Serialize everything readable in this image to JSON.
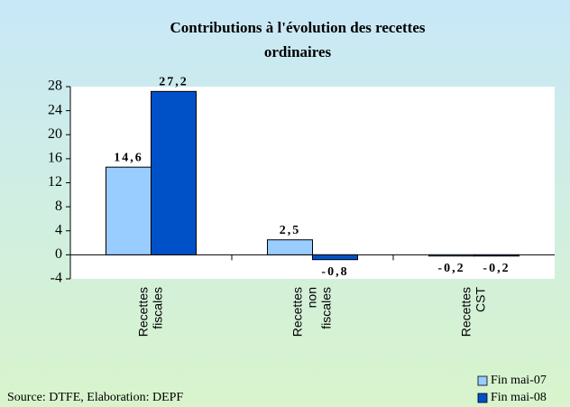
{
  "chart_data": {
    "type": "bar",
    "title": [
      "Contributions à l'évolution des recettes",
      "ordinaires"
    ],
    "categories": [
      "Recettes fiscales",
      "Recettes non fiscales",
      "Recettes CST"
    ],
    "series": [
      {
        "name": "Fin mai-07",
        "color": "#99ccff",
        "values": [
          14.6,
          2.5,
          -0.2
        ],
        "value_labels": [
          "14,6",
          "2,5",
          "-0,2"
        ]
      },
      {
        "name": "Fin mai-08",
        "color": "#0050c8",
        "values": [
          27.2,
          -0.8,
          -0.2
        ],
        "value_labels": [
          "27,2",
          "-0,8",
          "-0,2"
        ]
      }
    ],
    "ylim": [
      -4,
      28
    ],
    "yticks": [
      -4,
      0,
      4,
      8,
      12,
      16,
      20,
      24,
      28
    ],
    "source": "Source: DTFE, Elaboration: DEPF",
    "legend": "bottom-right"
  }
}
